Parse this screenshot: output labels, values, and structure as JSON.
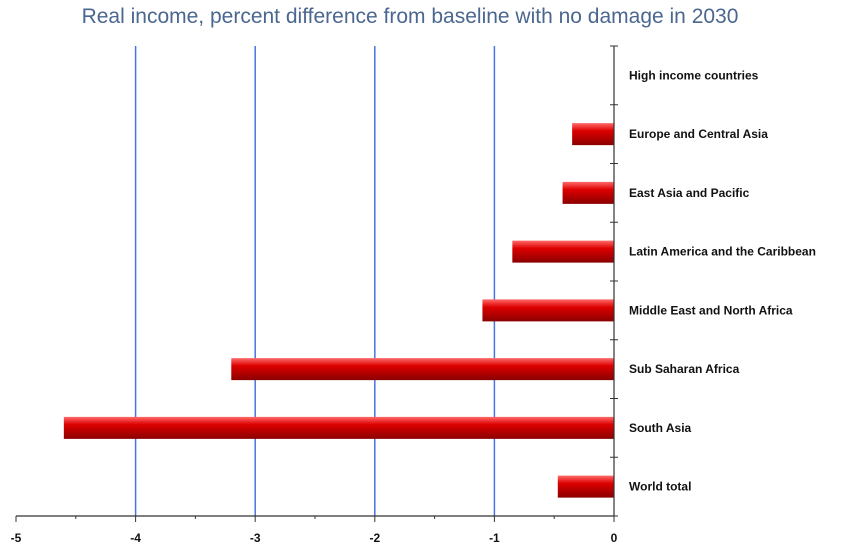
{
  "chart_data": {
    "type": "bar",
    "orientation": "horizontal",
    "title": "Real income, percent difference from baseline with no damage in 2030",
    "xlabel": "",
    "ylabel": "",
    "xlim": [
      -5,
      0
    ],
    "xticks": [
      "-5",
      "-4",
      "-3",
      "-2",
      "-1",
      "0"
    ],
    "categories": [
      "High income countries",
      "Europe and Central Asia",
      "East Asia and Pacific",
      "Latin America and the Caribbean",
      "Middle East and North Africa",
      "Sub Saharan Africa",
      "South Asia",
      "World total"
    ],
    "values": [
      0,
      -0.35,
      -0.43,
      -0.85,
      -1.1,
      -3.2,
      -4.6,
      -0.47
    ],
    "grid": "vertical",
    "colors": {
      "bar": "#dd0000",
      "bar_highlight": "#ff6a6a",
      "bar_shadow": "#8a0000",
      "gridline": "#4a74e0",
      "axis": "#333333",
      "title": "#4b6790"
    }
  }
}
